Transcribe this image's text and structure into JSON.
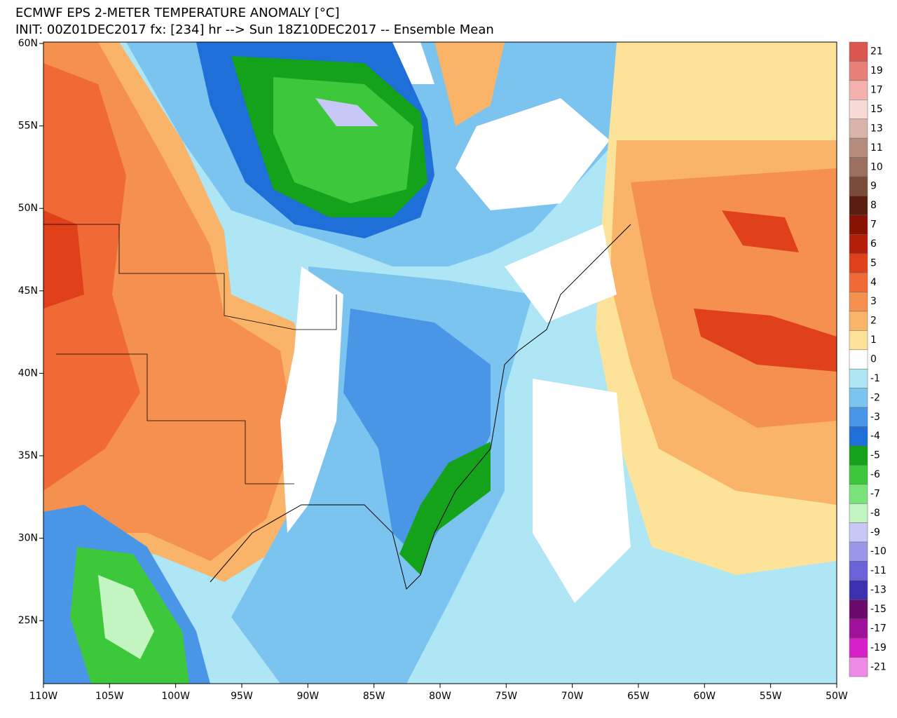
{
  "map": {
    "title": "ECMWF EPS 2-METER TEMPERATURE ANOMALY [°C]",
    "subtitle": "INIT: 00Z01DEC2017 fx: [234] hr --> Sun 18Z10DEC2017 -- Ensemble Mean",
    "lat_labels": [
      "60N",
      "55N",
      "50N",
      "45N",
      "40N",
      "35N",
      "30N",
      "25N"
    ],
    "lon_labels": [
      "110W",
      "105W",
      "100W",
      "95W",
      "90W",
      "85W",
      "80W",
      "75W",
      "70W",
      "65W",
      "60W",
      "55W",
      "50W"
    ],
    "legend": {
      "items": [
        {
          "label": "21",
          "color": "#d9574f"
        },
        {
          "label": "19",
          "color": "#e8807a"
        },
        {
          "label": "17",
          "color": "#f4b1ad"
        },
        {
          "label": "15",
          "color": "#f7d9d6"
        },
        {
          "label": "13",
          "color": "#d8b4a8"
        },
        {
          "label": "11",
          "color": "#b58b7c"
        },
        {
          "label": "10",
          "color": "#9c6f5f"
        },
        {
          "label": "9",
          "color": "#7a4a3a"
        },
        {
          "label": "8",
          "color": "#5a1e10"
        },
        {
          "label": "7",
          "color": "#8a1205"
        },
        {
          "label": "6",
          "color": "#b51e0a"
        },
        {
          "label": "5",
          "color": "#e0401a"
        },
        {
          "label": "4",
          "color": "#f06a35"
        },
        {
          "label": "3",
          "color": "#f5904f"
        },
        {
          "label": "2",
          "color": "#f9b46a"
        },
        {
          "label": "1",
          "color": "#fde39a"
        },
        {
          "label": "0",
          "color": "#ffffff"
        },
        {
          "label": "-1",
          "color": "#aee6f5"
        },
        {
          "label": "-2",
          "color": "#7cc4f0"
        },
        {
          "label": "-3",
          "color": "#4a96e6"
        },
        {
          "label": "-4",
          "color": "#1f6fd8"
        },
        {
          "label": "-5",
          "color": "#13a21a"
        },
        {
          "label": "-6",
          "color": "#3cc83a"
        },
        {
          "label": "-7",
          "color": "#7ae27a"
        },
        {
          "label": "-8",
          "color": "#c2f5c2"
        },
        {
          "label": "-9",
          "color": "#c7c8f5"
        },
        {
          "label": "-10",
          "color": "#9a96e8"
        },
        {
          "label": "-11",
          "color": "#6a62d8"
        },
        {
          "label": "-13",
          "color": "#3a30b0"
        },
        {
          "label": "-15",
          "color": "#6a0a6a"
        },
        {
          "label": "-17",
          "color": "#a0109a"
        },
        {
          "label": "-19",
          "color": "#d820c8"
        },
        {
          "label": "-21",
          "color": "#f08ae8"
        }
      ]
    }
  }
}
